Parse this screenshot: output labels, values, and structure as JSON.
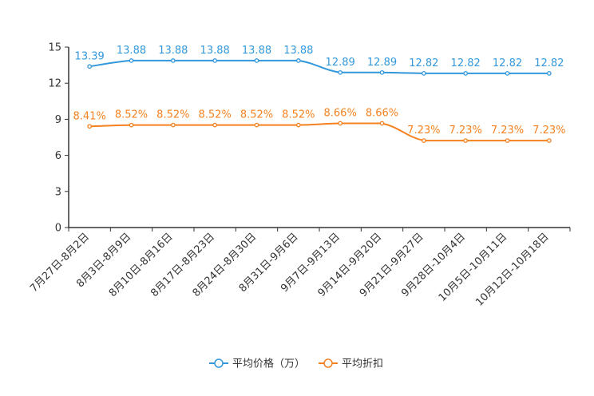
{
  "chart_data": {
    "type": "line",
    "categories": [
      "7月27日-8月2日",
      "8月3日-8月9日",
      "8月10日-8月16日",
      "8月17日-8月23日",
      "8月24日-8月30日",
      "8月31日-9月6日",
      "9月7日-9月13日",
      "9月14日-9月20日",
      "9月21日-9月27日",
      "9月28日-10月4日",
      "10月5日-10月11日",
      "10月12日-10月18日"
    ],
    "series": [
      {
        "name": "平均价格（万）",
        "color": "#3398DB",
        "values": [
          13.39,
          13.88,
          13.88,
          13.88,
          13.88,
          13.88,
          12.89,
          12.89,
          12.82,
          12.82,
          12.82,
          12.82
        ],
        "labels": [
          "13.39",
          "13.88",
          "13.88",
          "13.88",
          "13.88",
          "13.88",
          "12.89",
          "12.89",
          "12.82",
          "12.82",
          "12.82",
          "12.82"
        ]
      },
      {
        "name": "平均折扣",
        "color": "#F5811F",
        "values": [
          8.41,
          8.52,
          8.52,
          8.52,
          8.52,
          8.52,
          8.66,
          8.66,
          7.23,
          7.23,
          7.23,
          7.23
        ],
        "labels": [
          "8.41%",
          "8.52%",
          "8.52%",
          "8.52%",
          "8.52%",
          "8.52%",
          "8.66%",
          "8.66%",
          "7.23%",
          "7.23%",
          "7.23%",
          "7.23%"
        ]
      }
    ],
    "y_ticks": [
      0,
      3,
      6,
      9,
      12,
      15
    ],
    "ylim": [
      0,
      15
    ],
    "title": "",
    "xlabel": "",
    "ylabel": "",
    "legend_position": "bottom-center"
  }
}
